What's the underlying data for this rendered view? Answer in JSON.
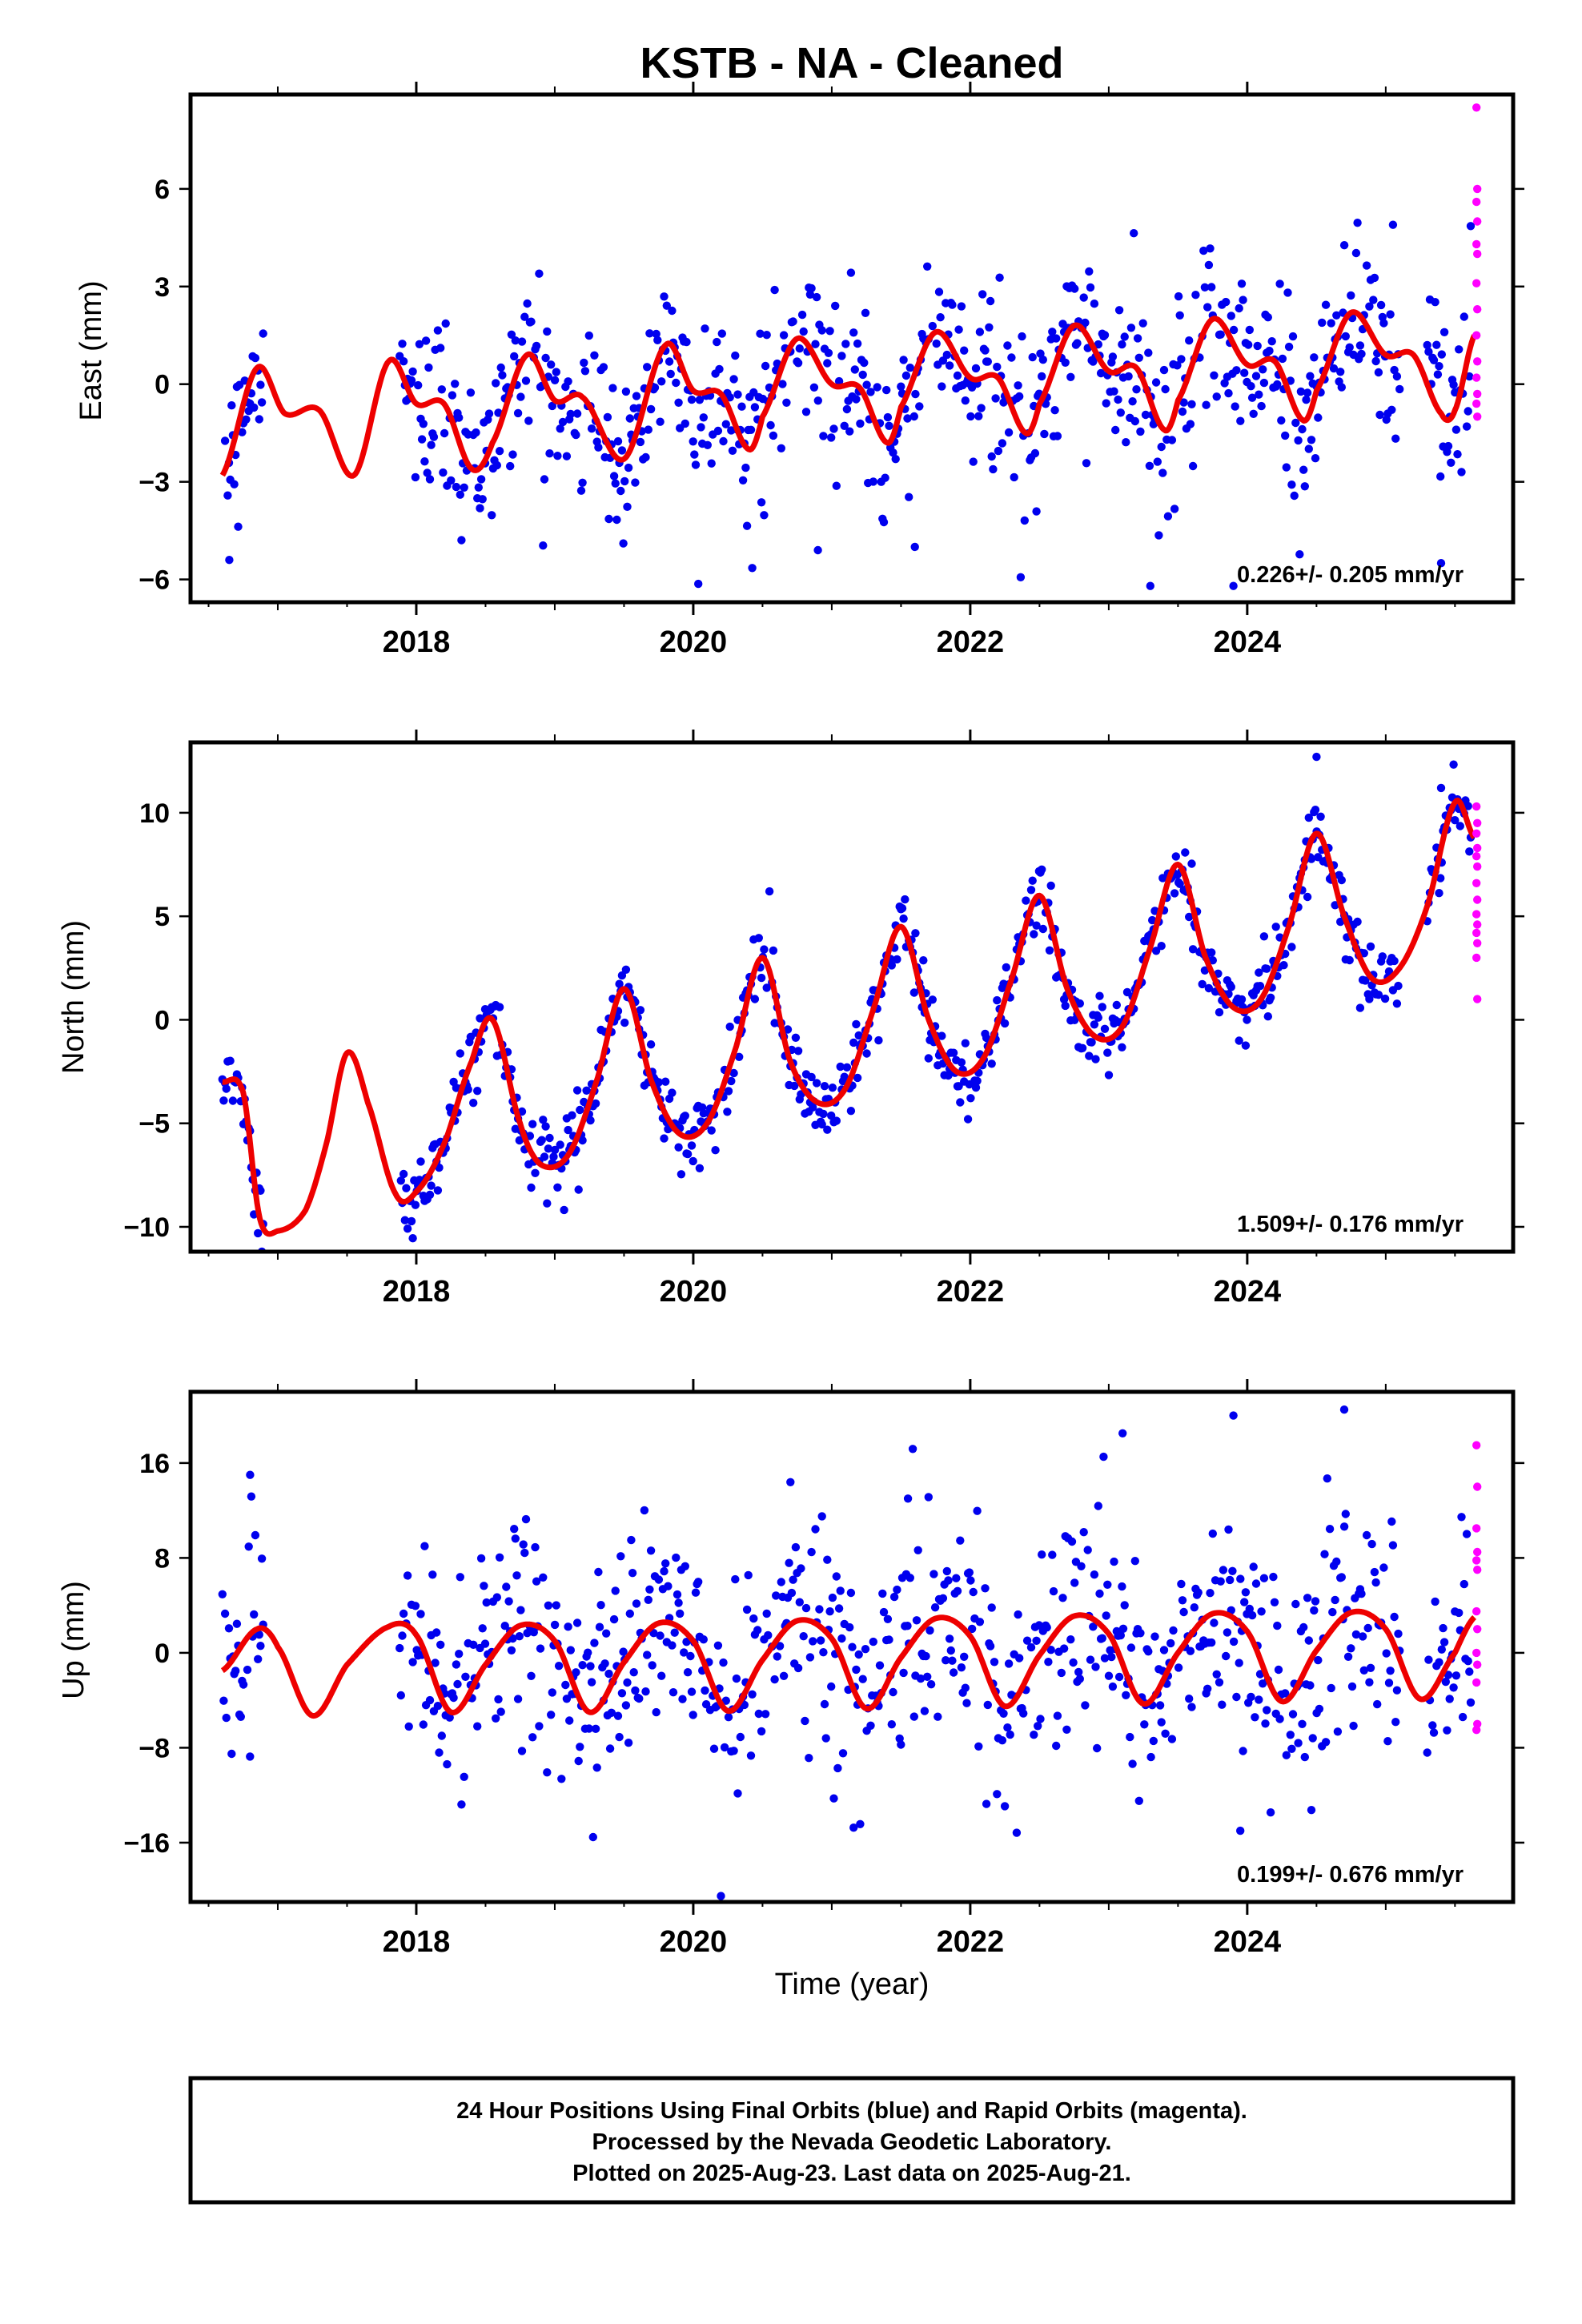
{
  "title": "KSTB  - NA - Cleaned",
  "xlabel": "Time (year)",
  "footer": {
    "lines": [
      "24 Hour Positions Using Final Orbits (blue) and Rapid Orbits (magenta).",
      "Processed by the Nevada Geodetic Laboratory.",
      "Plotted on 2025-Aug-23. Last data on 2025-Aug-21."
    ]
  },
  "colors": {
    "final": "#0000ee",
    "rapid": "#ff00ff",
    "model": "#ee0000",
    "frame": "#000000"
  },
  "chart_data": [
    {
      "type": "scatter",
      "id": "east",
      "ylabel": "East (mm)",
      "rate_label": "0.226+/- 0.205 mm/yr",
      "rate": 0.226,
      "rate_sigma": 0.205,
      "xlim": [
        2016.37,
        2025.92
      ],
      "ylim": [
        -6.7,
        8.9
      ],
      "yticks": [
        -6,
        -3,
        0,
        3,
        6
      ],
      "xticks": [
        2018,
        2020,
        2022,
        2024
      ],
      "data_start": 2016.6,
      "data_end": 2025.64,
      "model": {
        "x": [
          2016.6,
          2016.85,
          2017.05,
          2017.3,
          2017.55,
          2017.8,
          2018.0,
          2018.2,
          2018.4,
          2018.55,
          2018.8,
          2019.0,
          2019.2,
          2019.5,
          2019.8,
          2020.0,
          2020.2,
          2020.4,
          2020.5,
          2020.75,
          2021.0,
          2021.2,
          2021.4,
          2021.5,
          2021.75,
          2022.0,
          2022.2,
          2022.4,
          2022.5,
          2022.75,
          2023.0,
          2023.2,
          2023.4,
          2023.5,
          2023.75,
          2024.0,
          2024.2,
          2024.4,
          2024.5,
          2024.75,
          2025.0,
          2025.2,
          2025.4,
          2025.5,
          2025.64
        ],
        "y": [
          -2.8,
          0.5,
          -0.9,
          -0.8,
          -2.8,
          0.7,
          -0.6,
          -0.6,
          -2.6,
          -1.8,
          0.9,
          -0.5,
          -0.4,
          -2.3,
          1.2,
          -0.2,
          -0.3,
          -2.0,
          -1.0,
          1.4,
          0.0,
          -0.1,
          -1.8,
          -0.7,
          1.6,
          0.2,
          0.2,
          -1.5,
          -0.6,
          1.8,
          0.4,
          0.5,
          -1.4,
          -0.5,
          2.0,
          0.6,
          0.7,
          -1.1,
          -0.2,
          2.2,
          0.9,
          0.9,
          -0.9,
          -0.8,
          1.5
        ]
      },
      "season_amp": 1.7,
      "scatter_sigma": 1.2,
      "rapid_y": [
        8.5,
        6.0,
        5.6,
        5.0,
        4.3,
        4.0,
        3.1,
        2.3,
        1.5,
        0.7,
        0.2,
        -0.3,
        -0.6,
        -1.0
      ],
      "outliers": [
        [
          2023.3,
          -6.2
        ],
        [
          2023.9,
          -6.2
        ],
        [
          2025.4,
          -5.5
        ],
        [
          2016.65,
          -5.4
        ],
        [
          2021.6,
          -5.0
        ],
        [
          2020.9,
          -5.1
        ]
      ]
    },
    {
      "type": "scatter",
      "id": "north",
      "ylabel": "North (mm)",
      "rate_label": "1.509+/- 0.176 mm/yr",
      "rate": 1.509,
      "rate_sigma": 0.176,
      "xlim": [
        2016.37,
        2025.92
      ],
      "ylim": [
        -11.2,
        13.4
      ],
      "yticks": [
        -10,
        -5,
        0,
        5,
        10
      ],
      "xticks": [
        2018,
        2020,
        2022,
        2024
      ],
      "data_start": 2016.6,
      "data_end": 2025.64,
      "model": {
        "x": [
          2016.6,
          2016.75,
          2016.87,
          2017.0,
          2017.2,
          2017.35,
          2017.5,
          2017.65,
          2017.85,
          2018.0,
          2018.2,
          2018.4,
          2018.55,
          2018.75,
          2018.9,
          2019.1,
          2019.3,
          2019.5,
          2019.7,
          2019.9,
          2020.1,
          2020.3,
          2020.5,
          2020.7,
          2020.9,
          2021.1,
          2021.3,
          2021.5,
          2021.7,
          2021.9,
          2022.1,
          2022.3,
          2022.5,
          2022.7,
          2022.9,
          2023.1,
          2023.3,
          2023.5,
          2023.7,
          2023.9,
          2024.1,
          2024.3,
          2024.5,
          2024.7,
          2024.9,
          2025.1,
          2025.3,
          2025.5,
          2025.64
        ],
        "y": [
          -3.0,
          -3.5,
          -9.6,
          -10.2,
          -9.2,
          -6.0,
          -1.6,
          -4.0,
          -8.4,
          -8.3,
          -6.0,
          -2.0,
          0.0,
          -5.0,
          -7.0,
          -6.5,
          -3.0,
          1.5,
          -3.0,
          -5.5,
          -5.0,
          -1.5,
          3.0,
          -2.0,
          -4.0,
          -3.3,
          0.5,
          4.5,
          0.0,
          -2.5,
          -1.8,
          2.0,
          6.0,
          1.5,
          -0.8,
          -0.3,
          3.5,
          7.5,
          3.0,
          0.6,
          1.0,
          4.5,
          9.0,
          5.0,
          2.0,
          2.5,
          5.5,
          10.5,
          8.8
        ]
      },
      "scatter_sigma": 0.9,
      "rapid_y": [
        10.3,
        9.5,
        9.0,
        8.3,
        7.9,
        7.4,
        6.6,
        5.8,
        5.1,
        4.6,
        4.2,
        3.7,
        3.0,
        1.0
      ],
      "outliers": [
        [
          2024.5,
          12.7
        ],
        [
          2020.55,
          6.2
        ],
        [
          2025.4,
          11.2
        ]
      ]
    },
    {
      "type": "scatter",
      "id": "up",
      "ylabel": "Up (mm)",
      "rate_label": "0.199+/- 0.676 mm/yr",
      "rate": 0.199,
      "rate_sigma": 0.676,
      "xlim": [
        2016.37,
        2025.92
      ],
      "ylim": [
        -21.0,
        22.0
      ],
      "yticks": [
        -16,
        -8,
        0,
        8,
        16
      ],
      "xticks": [
        2018,
        2020,
        2022,
        2024
      ],
      "data_start": 2016.6,
      "data_end": 2025.64,
      "model": {
        "x": [
          2016.6,
          2016.85,
          2017.0,
          2017.25,
          2017.5,
          2017.8,
          2018.0,
          2018.25,
          2018.5,
          2018.75,
          2019.0,
          2019.25,
          2019.5,
          2019.75,
          2020.0,
          2020.25,
          2020.5,
          2020.75,
          2021.0,
          2021.25,
          2021.5,
          2021.75,
          2022.0,
          2022.25,
          2022.5,
          2022.75,
          2023.0,
          2023.25,
          2023.5,
          2023.75,
          2024.0,
          2024.25,
          2024.5,
          2024.75,
          2025.0,
          2025.25,
          2025.5,
          2025.64
        ],
        "y": [
          -1.5,
          2.0,
          0.5,
          -5.3,
          -1.0,
          2.2,
          1.5,
          -5.0,
          -1.0,
          2.3,
          1.0,
          -5.0,
          -0.8,
          2.5,
          1.0,
          -4.9,
          -0.6,
          2.7,
          1.2,
          -4.7,
          -0.4,
          2.9,
          1.4,
          -4.5,
          -0.2,
          3.1,
          1.6,
          -4.3,
          0.0,
          3.3,
          1.8,
          -4.1,
          0.2,
          3.4,
          2.0,
          -3.9,
          0.0,
          3.0
        ]
      },
      "scatter_sigma": 4.3,
      "rapid_y": [
        17.5,
        14.0,
        10.5,
        8.5,
        7.8,
        7.0,
        3.5,
        2.0,
        0.0,
        -1.0,
        -2.5,
        -6.0,
        -6.5
      ],
      "outliers": [
        [
          2023.9,
          20.0
        ],
        [
          2024.7,
          20.5
        ],
        [
          2020.2,
          -20.5
        ],
        [
          2023.95,
          -15.0
        ],
        [
          2016.8,
          15.0
        ],
        [
          2023.1,
          18.5
        ],
        [
          2021.55,
          13.0
        ]
      ]
    }
  ]
}
